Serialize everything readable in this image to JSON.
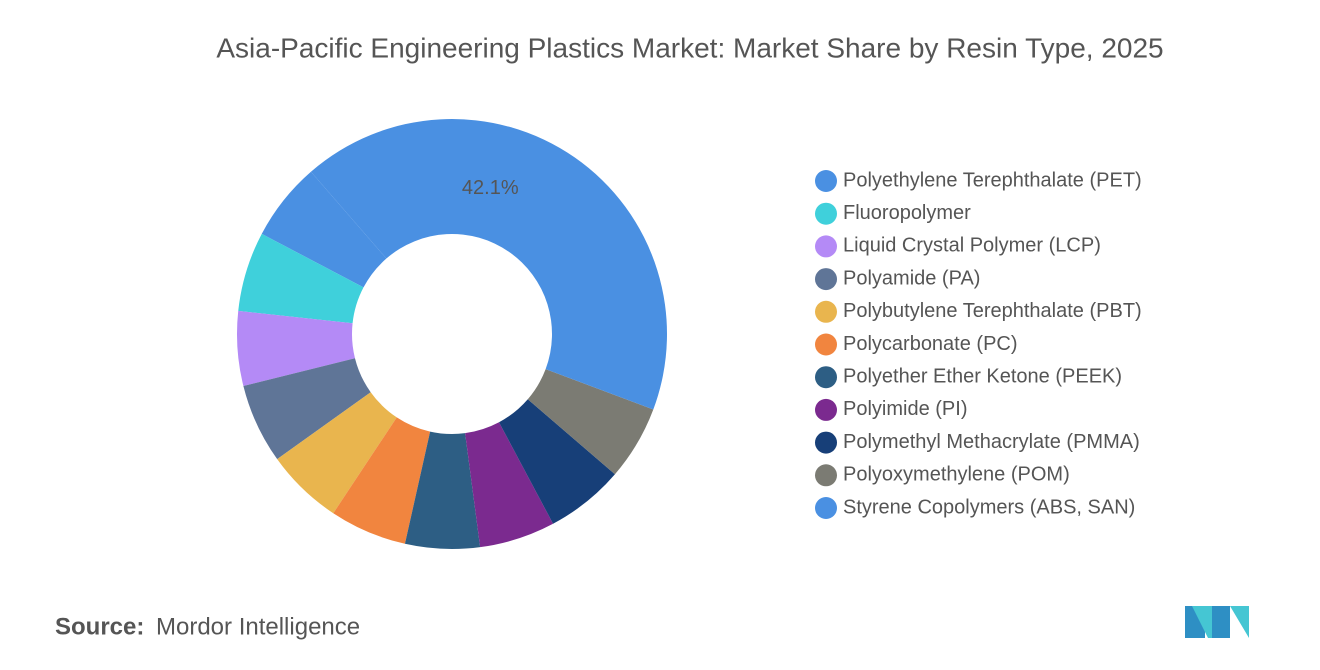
{
  "chart_data": {
    "type": "donut",
    "title": "Asia-Pacific Engineering Plastics Market: Market Share by Resin Type, 2025",
    "categories": [
      "Polyethylene Terephthalate (PET)",
      "Fluoropolymer",
      "Liquid Crystal Polymer (LCP)",
      "Polyamide (PA)",
      "Polybutylene Terephthalate (PBT)",
      "Polycarbonate (PC)",
      "Polyether Ether Ketone (PEEK)",
      "Polyimide (PI)",
      "Polymethyl Methacrylate (PMMA)",
      "Polyoxymethylene (POM)",
      "Styrene Copolymers (ABS, SAN)"
    ],
    "values": [
      5.9,
      6.0,
      5.6,
      6.0,
      5.8,
      5.8,
      5.6,
      5.7,
      5.9,
      5.6,
      42.1
    ],
    "value_labels": [
      null,
      null,
      null,
      null,
      null,
      null,
      null,
      null,
      null,
      null,
      "42.1%"
    ],
    "colors": [
      "#4a90e2",
      "#3fd0db",
      "#b48af6",
      "#5f7597",
      "#e9b54e",
      "#f1853f",
      "#2d5e84",
      "#7b2a8f",
      "#173f78",
      "#7b7b73",
      "#4a90e2"
    ],
    "legend": "right"
  },
  "source_label": "Source:",
  "source": "Mordor Intelligence"
}
